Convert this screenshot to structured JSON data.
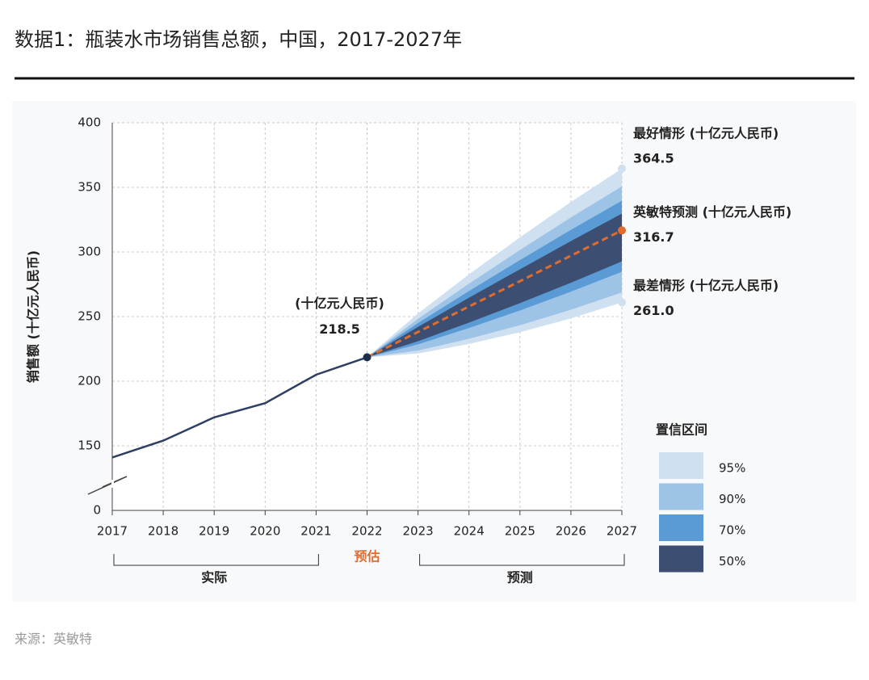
{
  "chart_data": {
    "type": "fan",
    "title": "数据1：瓶装水市场销售总额，中国，2017-2027年",
    "y_label": "销售额 (十亿元人民币)",
    "source": "来源：英敏特",
    "x": [
      2017,
      2018,
      2019,
      2020,
      2021,
      2022,
      2023,
      2024,
      2025,
      2026,
      2027
    ],
    "xlim": [
      2017,
      2027
    ],
    "xticks": [
      2017,
      2018,
      2019,
      2020,
      2021,
      2022,
      2023,
      2024,
      2025,
      2026,
      2027
    ],
    "ylim": [
      0,
      400
    ],
    "y_break": [
      0,
      100
    ],
    "yticks": [
      0,
      150,
      200,
      250,
      300,
      350,
      400
    ],
    "grid": true,
    "series": [
      {
        "name": "实际",
        "color": "#2e3f63",
        "dashed": false,
        "values": [
          141,
          154,
          172,
          183,
          205,
          218.5,
          null,
          null,
          null,
          null,
          null
        ]
      },
      {
        "name": "英敏特预测",
        "color": "#e06c2e",
        "dashed": true,
        "values": [
          null,
          null,
          null,
          null,
          null,
          218.5,
          238.1,
          257.8,
          277.4,
          297.1,
          316.7
        ]
      }
    ],
    "legend_title": "置信区间",
    "bands": [
      {
        "name": "95%",
        "color": "#cfe0f1",
        "upper": [
          null,
          null,
          null,
          null,
          null,
          218.5,
          252.4,
          282.7,
          311.3,
          338.7,
          364.5
        ],
        "lower": [
          null,
          null,
          null,
          null,
          null,
          218.5,
          221.4,
          228.8,
          237.9,
          248.6,
          261.0
        ]
      },
      {
        "name": "90%",
        "color": "#9dc3e6",
        "upper": [
          null,
          null,
          null,
          null,
          null,
          218.5,
          248.3,
          275.5,
          301.5,
          326.7,
          350.7
        ],
        "lower": [
          null,
          null,
          null,
          null,
          null,
          218.5,
          223.7,
          232.8,
          243.3,
          255.3,
          268.7
        ]
      },
      {
        "name": "70%",
        "color": "#5b9bd5",
        "upper": [
          null,
          null,
          null,
          null,
          null,
          218.5,
          245.0,
          269.8,
          293.7,
          317.1,
          339.7
        ],
        "lower": [
          null,
          null,
          null,
          null,
          null,
          218.5,
          228.5,
          241.2,
          254.7,
          269.3,
          284.7
        ]
      },
      {
        "name": "50%",
        "color": "#3c4f73",
        "upper": [
          null,
          null,
          null,
          null,
          null,
          218.5,
          242.0,
          264.6,
          286.6,
          308.4,
          329.7
        ],
        "lower": [
          null,
          null,
          null,
          null,
          null,
          218.5,
          230.9,
          245.3,
          260.4,
          276.2,
          292.7
        ]
      }
    ],
    "annotations": [
      {
        "text": "(十亿元人民币)",
        "value": 218.5,
        "value_label": "218.5",
        "x": 2022,
        "color": "#1f2d4d"
      },
      {
        "text": "最好情形 (十亿元人民币)",
        "value": 364.5,
        "value_label": "364.5",
        "x": 2027,
        "color": "#cfe0f1"
      },
      {
        "text": "英敏特预测 (十亿元人民币)",
        "value": 316.7,
        "value_label": "316.7",
        "x": 2027,
        "color": "#e06c2e"
      },
      {
        "text": "最差情形 (十亿元人民币)",
        "value": 261.0,
        "value_label": "261.0",
        "x": 2027,
        "color": "#cfe0f1"
      }
    ],
    "periods": [
      {
        "label": "实际",
        "start": 2017,
        "end": 2021,
        "bracket": true,
        "color": "#222"
      },
      {
        "label": "预估",
        "start": 2022,
        "end": 2022,
        "bracket": false,
        "color": "#e06c2e"
      },
      {
        "label": "预测",
        "start": 2023,
        "end": 2027,
        "bracket": true,
        "color": "#222"
      }
    ]
  }
}
